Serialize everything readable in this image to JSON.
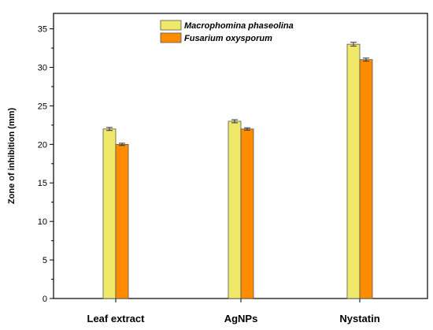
{
  "chart_data": {
    "type": "bar",
    "title": "",
    "xlabel": "",
    "ylabel": "Zone of inhibition (mm)",
    "categories": [
      "Leaf extract",
      "AgNPs",
      "Nystatin"
    ],
    "series": [
      {
        "name": "Macrophomina phaseolina",
        "color": "#f0e868",
        "values": [
          22,
          23,
          33
        ],
        "errors": [
          0.2,
          0.2,
          0.25
        ]
      },
      {
        "name": "Fusarium oxysporum",
        "color": "#ff8c00",
        "values": [
          20,
          22,
          31
        ],
        "errors": [
          0.15,
          0.15,
          0.2
        ]
      }
    ],
    "ylim": [
      0,
      37
    ],
    "yticks": [
      0,
      5,
      10,
      15,
      20,
      25,
      30,
      35
    ],
    "grid": false,
    "legend_position": "top-center",
    "bar_edge_color": "#555555"
  }
}
